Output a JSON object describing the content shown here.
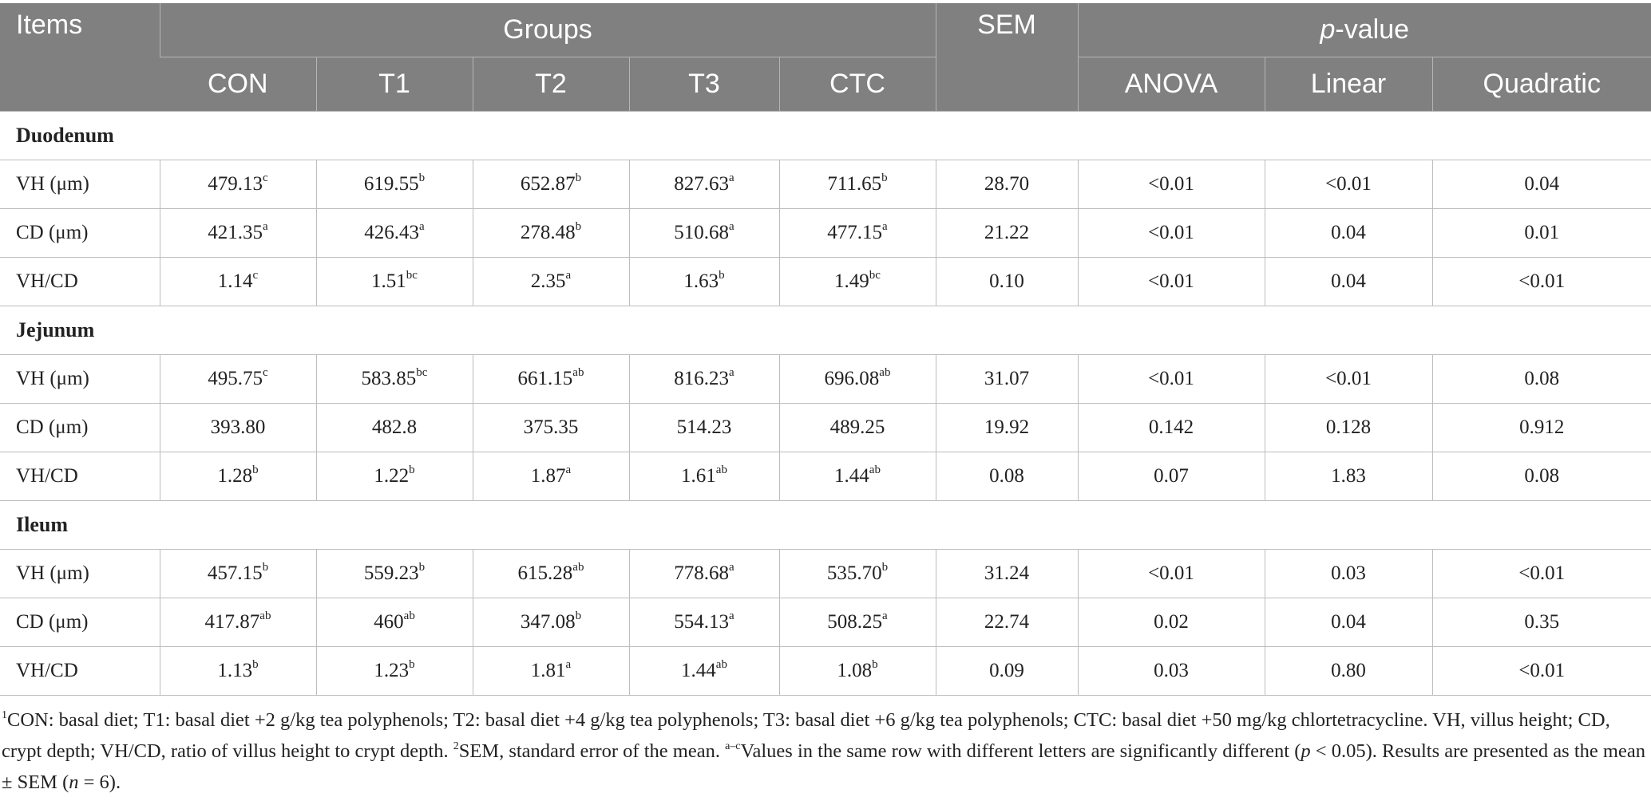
{
  "header": {
    "items": "Items",
    "groups": "Groups",
    "sem": "SEM",
    "pvalue_italic": "p",
    "pvalue_rest": "-value",
    "columns": [
      "CON",
      "T1",
      "T2",
      "T3",
      "CTC"
    ],
    "pcolumns": [
      "ANOVA",
      "Linear",
      "Quadratic"
    ]
  },
  "sections": [
    {
      "name": "Duodenum",
      "rows": [
        {
          "item": "VH (μm)",
          "values": [
            [
              "479.13",
              "c"
            ],
            [
              "619.55",
              "b"
            ],
            [
              "652.87",
              "b"
            ],
            [
              "827.63",
              "a"
            ],
            [
              "711.65",
              "b"
            ]
          ],
          "sem": "28.70",
          "anova": "<0.01",
          "linear": "<0.01",
          "quadratic": "0.04"
        },
        {
          "item": "CD (μm)",
          "values": [
            [
              "421.35",
              "a"
            ],
            [
              "426.43",
              "a"
            ],
            [
              "278.48",
              "b"
            ],
            [
              "510.68",
              "a"
            ],
            [
              "477.15",
              "a"
            ]
          ],
          "sem": "21.22",
          "anova": "<0.01",
          "linear": "0.04",
          "quadratic": "0.01"
        },
        {
          "item": "VH/CD",
          "values": [
            [
              "1.14",
              "c"
            ],
            [
              "1.51",
              "bc"
            ],
            [
              "2.35",
              "a"
            ],
            [
              "1.63",
              "b"
            ],
            [
              "1.49",
              "bc"
            ]
          ],
          "sem": "0.10",
          "anova": "<0.01",
          "linear": "0.04",
          "quadratic": "<0.01"
        }
      ]
    },
    {
      "name": "Jejunum",
      "rows": [
        {
          "item": "VH (μm)",
          "values": [
            [
              "495.75",
              "c"
            ],
            [
              "583.85",
              "bc"
            ],
            [
              "661.15",
              "ab"
            ],
            [
              "816.23",
              "a"
            ],
            [
              "696.08",
              "ab"
            ]
          ],
          "sem": "31.07",
          "anova": "<0.01",
          "linear": "<0.01",
          "quadratic": "0.08"
        },
        {
          "item": "CD (μm)",
          "values": [
            [
              "393.80",
              ""
            ],
            [
              "482.8",
              ""
            ],
            [
              "375.35",
              ""
            ],
            [
              "514.23",
              ""
            ],
            [
              "489.25",
              ""
            ]
          ],
          "sem": "19.92",
          "anova": "0.142",
          "linear": "0.128",
          "quadratic": "0.912"
        },
        {
          "item": "VH/CD",
          "values": [
            [
              "1.28",
              "b"
            ],
            [
              "1.22",
              "b"
            ],
            [
              "1.87",
              "a"
            ],
            [
              "1.61",
              "ab"
            ],
            [
              "1.44",
              "ab"
            ]
          ],
          "sem": "0.08",
          "anova": "0.07",
          "linear": "1.83",
          "quadratic": "0.08"
        }
      ]
    },
    {
      "name": "Ileum",
      "rows": [
        {
          "item": "VH (μm)",
          "values": [
            [
              "457.15",
              "b"
            ],
            [
              "559.23",
              "b"
            ],
            [
              "615.28",
              "ab"
            ],
            [
              "778.68",
              "a"
            ],
            [
              "535.70",
              "b"
            ]
          ],
          "sem": "31.24",
          "anova": "<0.01",
          "linear": "0.03",
          "quadratic": "<0.01"
        },
        {
          "item": "CD (μm)",
          "values": [
            [
              "417.87",
              "ab"
            ],
            [
              "460",
              "ab"
            ],
            [
              "347.08",
              "b"
            ],
            [
              "554.13",
              "a"
            ],
            [
              "508.25",
              "a"
            ]
          ],
          "sem": "22.74",
          "anova": "0.02",
          "linear": "0.04",
          "quadratic": "0.35"
        },
        {
          "item": "VH/CD",
          "values": [
            [
              "1.13",
              "b"
            ],
            [
              "1.23",
              "b"
            ],
            [
              "1.81",
              "a"
            ],
            [
              "1.44",
              "ab"
            ],
            [
              "1.08",
              "b"
            ]
          ],
          "sem": "0.09",
          "anova": "0.03",
          "linear": "0.80",
          "quadratic": "<0.01"
        }
      ]
    }
  ],
  "footnote": {
    "sup1": "1",
    "part1": "CON: basal diet; T1: basal diet +2 g/kg tea polyphenols; T2: basal diet +4 g/kg tea polyphenols; T3: basal diet +6 g/kg tea polyphenols; CTC: basal diet +50 mg/kg chlortetracycline. VH, villus height; CD, crypt depth; VH/CD, ratio of villus height to crypt depth. ",
    "sup2": "2",
    "part2": "SEM, standard error of the mean. ",
    "sup3": "a–c",
    "part3": "Values in the same row with different letters are significantly different (",
    "p_italic": "p",
    "part4": " < 0.05). Results are presented as the mean ± SEM (",
    "n_italic": "n",
    "part5": " = 6)."
  }
}
